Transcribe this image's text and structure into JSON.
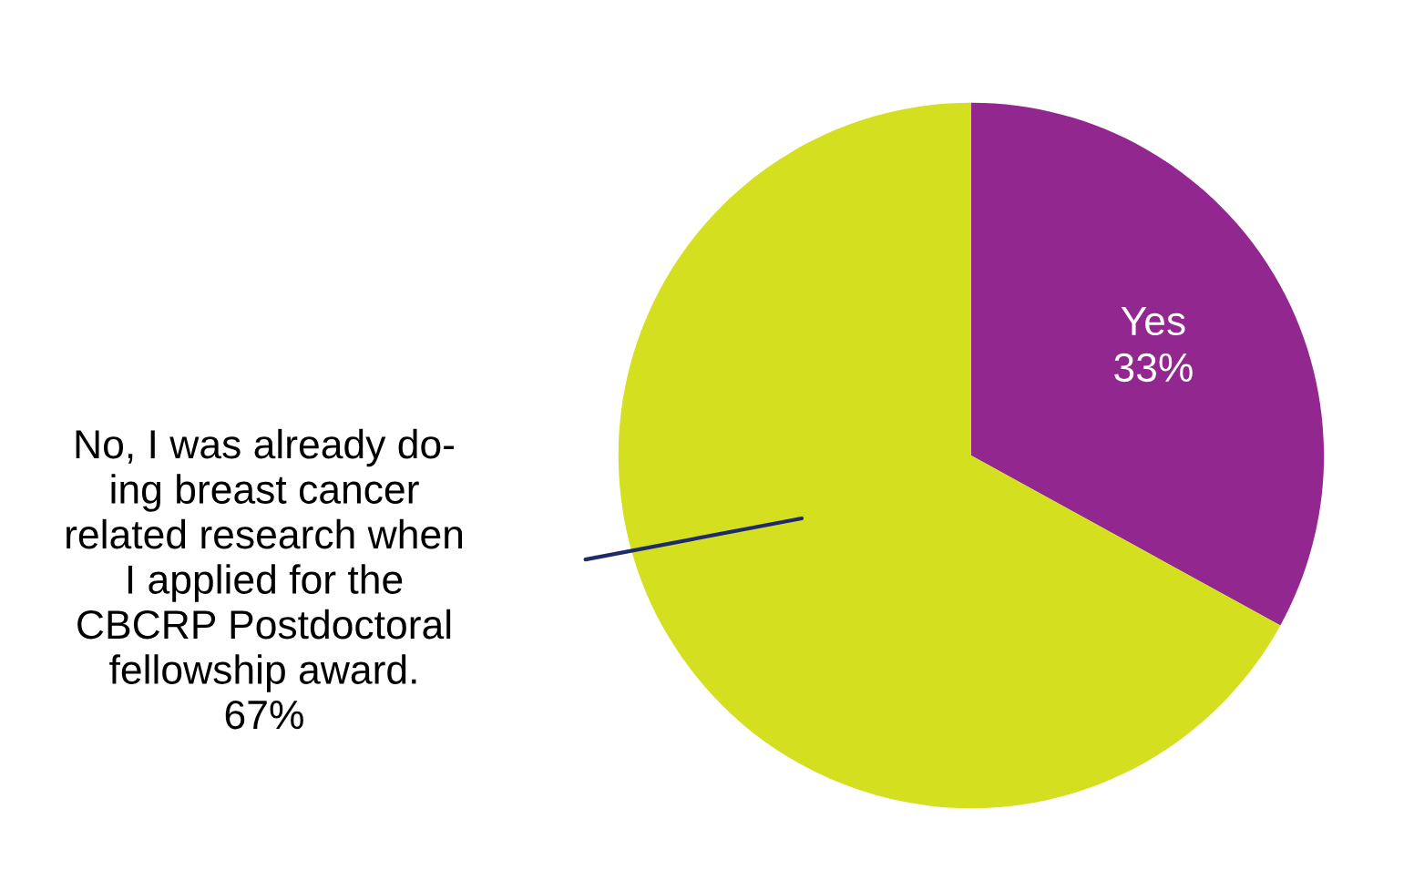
{
  "chart_data": {
    "type": "pie",
    "categories": [
      "Yes",
      "No, I was already do-\ning breast cancer\nrelated research when\nI applied for the\nCBCRP Postdoctoral\nfellowship award."
    ],
    "values": [
      33,
      67
    ],
    "colors": [
      "#92278f",
      "#d4df20"
    ],
    "value_labels": [
      "33%",
      "67%"
    ],
    "legend": false
  }
}
